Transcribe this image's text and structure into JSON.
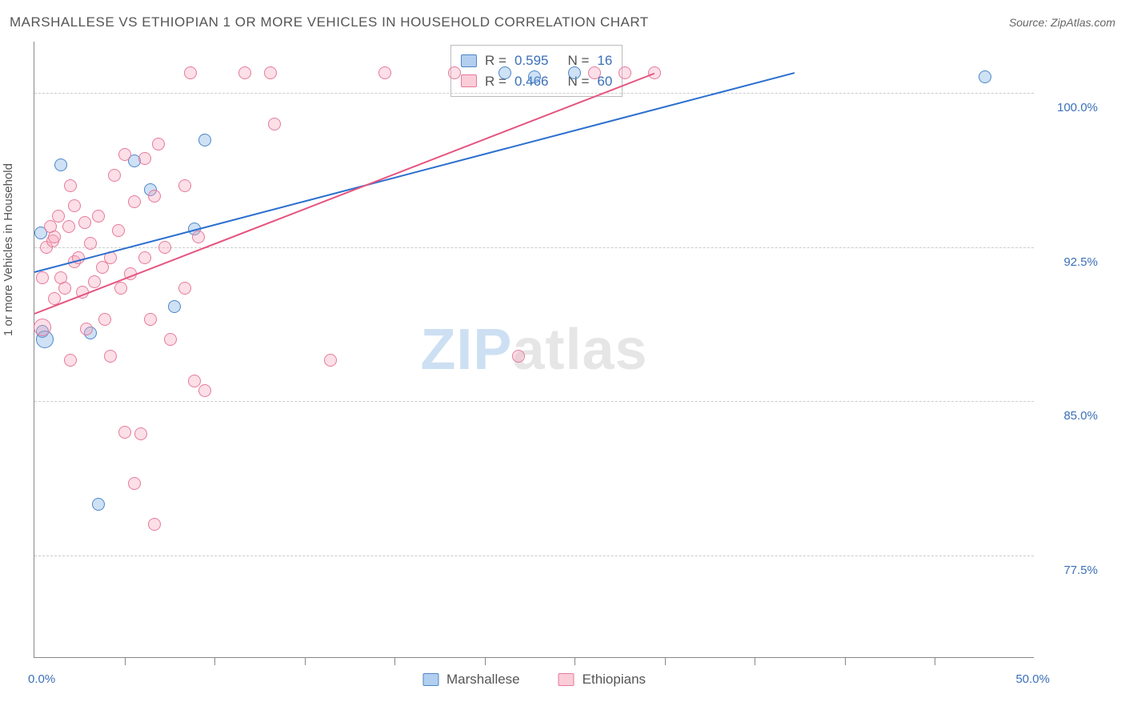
{
  "title": "MARSHALLESE VS ETHIOPIAN 1 OR MORE VEHICLES IN HOUSEHOLD CORRELATION CHART",
  "source": "Source: ZipAtlas.com",
  "ylabel": "1 or more Vehicles in Household",
  "chart": {
    "type": "scatter",
    "xlim": [
      0,
      50
    ],
    "ylim": [
      72.5,
      102.5
    ],
    "x_ticks_label_min": "0.0%",
    "x_ticks_label_max": "50.0%",
    "x_minor_ticks": [
      4.5,
      9.0,
      13.5,
      18.0,
      22.5,
      27.0,
      31.5,
      36.0,
      40.5,
      45.0
    ],
    "y_ticks": [
      {
        "v": 77.5,
        "label": "77.5%"
      },
      {
        "v": 85.0,
        "label": "85.0%"
      },
      {
        "v": 92.5,
        "label": "92.5%"
      },
      {
        "v": 100.0,
        "label": "100.0%"
      }
    ],
    "background_color": "#ffffff",
    "grid_color": "#cccccc",
    "series": [
      {
        "name": "Marshallese",
        "color_fill": "#74a8e1",
        "color_stroke": "#4c86c8",
        "R": "0.595",
        "N": "16",
        "trend": {
          "x1": 0,
          "y1": 91.3,
          "x2": 38,
          "y2": 101.0
        },
        "points": [
          {
            "x": 0.3,
            "y": 93.2
          },
          {
            "x": 0.4,
            "y": 88.4
          },
          {
            "x": 0.5,
            "y": 88.0,
            "big": true
          },
          {
            "x": 1.3,
            "y": 96.5
          },
          {
            "x": 2.8,
            "y": 88.3
          },
          {
            "x": 3.2,
            "y": 80.0
          },
          {
            "x": 5.0,
            "y": 96.7
          },
          {
            "x": 5.8,
            "y": 95.3
          },
          {
            "x": 7.0,
            "y": 89.6
          },
          {
            "x": 8.0,
            "y": 93.4
          },
          {
            "x": 8.5,
            "y": 97.7
          },
          {
            "x": 23.5,
            "y": 101.0
          },
          {
            "x": 25.0,
            "y": 100.8
          },
          {
            "x": 27.0,
            "y": 101.0
          },
          {
            "x": 47.5,
            "y": 100.8
          }
        ]
      },
      {
        "name": "Ethiopians",
        "color_fill": "#f7a4ba",
        "color_stroke": "#e67a9c",
        "R": "0.466",
        "N": "60",
        "trend": {
          "x1": 0,
          "y1": 89.3,
          "x2": 31,
          "y2": 101.0
        },
        "points": [
          {
            "x": 0.4,
            "y": 88.6,
            "big": true
          },
          {
            "x": 0.4,
            "y": 91.0
          },
          {
            "x": 0.6,
            "y": 92.5
          },
          {
            "x": 0.8,
            "y": 93.5
          },
          {
            "x": 0.9,
            "y": 92.8
          },
          {
            "x": 1.0,
            "y": 90.0
          },
          {
            "x": 1.0,
            "y": 93.0
          },
          {
            "x": 1.2,
            "y": 94.0
          },
          {
            "x": 1.3,
            "y": 91.0
          },
          {
            "x": 1.5,
            "y": 90.5
          },
          {
            "x": 1.7,
            "y": 93.5
          },
          {
            "x": 1.8,
            "y": 87.0
          },
          {
            "x": 1.8,
            "y": 95.5
          },
          {
            "x": 2.0,
            "y": 91.8
          },
          {
            "x": 2.0,
            "y": 94.5
          },
          {
            "x": 2.2,
            "y": 92.0
          },
          {
            "x": 2.4,
            "y": 90.3
          },
          {
            "x": 2.5,
            "y": 93.7
          },
          {
            "x": 2.6,
            "y": 88.5
          },
          {
            "x": 2.8,
            "y": 92.7
          },
          {
            "x": 3.0,
            "y": 90.8
          },
          {
            "x": 3.2,
            "y": 94.0
          },
          {
            "x": 3.4,
            "y": 91.5
          },
          {
            "x": 3.5,
            "y": 89.0
          },
          {
            "x": 3.8,
            "y": 92.0
          },
          {
            "x": 3.8,
            "y": 87.2
          },
          {
            "x": 4.0,
            "y": 96.0
          },
          {
            "x": 4.2,
            "y": 93.3
          },
          {
            "x": 4.3,
            "y": 90.5
          },
          {
            "x": 4.5,
            "y": 97.0
          },
          {
            "x": 4.5,
            "y": 83.5
          },
          {
            "x": 4.8,
            "y": 91.2
          },
          {
            "x": 5.0,
            "y": 81.0
          },
          {
            "x": 5.0,
            "y": 94.7
          },
          {
            "x": 5.3,
            "y": 83.4
          },
          {
            "x": 5.5,
            "y": 92.0
          },
          {
            "x": 5.5,
            "y": 96.8
          },
          {
            "x": 5.8,
            "y": 89.0
          },
          {
            "x": 6.0,
            "y": 95.0
          },
          {
            "x": 6.0,
            "y": 79.0
          },
          {
            "x": 6.2,
            "y": 97.5
          },
          {
            "x": 6.5,
            "y": 92.5
          },
          {
            "x": 6.8,
            "y": 88.0
          },
          {
            "x": 7.5,
            "y": 95.5
          },
          {
            "x": 7.5,
            "y": 90.5
          },
          {
            "x": 7.8,
            "y": 101.0
          },
          {
            "x": 8.0,
            "y": 86.0
          },
          {
            "x": 8.2,
            "y": 93.0
          },
          {
            "x": 8.5,
            "y": 85.5
          },
          {
            "x": 10.5,
            "y": 101.0
          },
          {
            "x": 11.8,
            "y": 101.0
          },
          {
            "x": 12.0,
            "y": 98.5
          },
          {
            "x": 14.8,
            "y": 87.0
          },
          {
            "x": 17.5,
            "y": 101.0
          },
          {
            "x": 21.0,
            "y": 101.0
          },
          {
            "x": 24.2,
            "y": 87.2
          },
          {
            "x": 28.0,
            "y": 101.0
          },
          {
            "x": 29.5,
            "y": 101.0
          },
          {
            "x": 31.0,
            "y": 101.0
          }
        ]
      }
    ]
  },
  "legend_top": {
    "rows": [
      {
        "swatch": "blue",
        "r_label": "R =",
        "r_val": "0.595",
        "n_label": "N =",
        "n_val": "16"
      },
      {
        "swatch": "pink",
        "r_label": "R =",
        "r_val": "0.466",
        "n_label": "N =",
        "n_val": "60"
      }
    ]
  },
  "legend_bottom": [
    {
      "swatch": "blue",
      "label": "Marshallese"
    },
    {
      "swatch": "pink",
      "label": "Ethiopians"
    }
  ],
  "watermark": {
    "a": "ZIP",
    "b": "atlas"
  }
}
